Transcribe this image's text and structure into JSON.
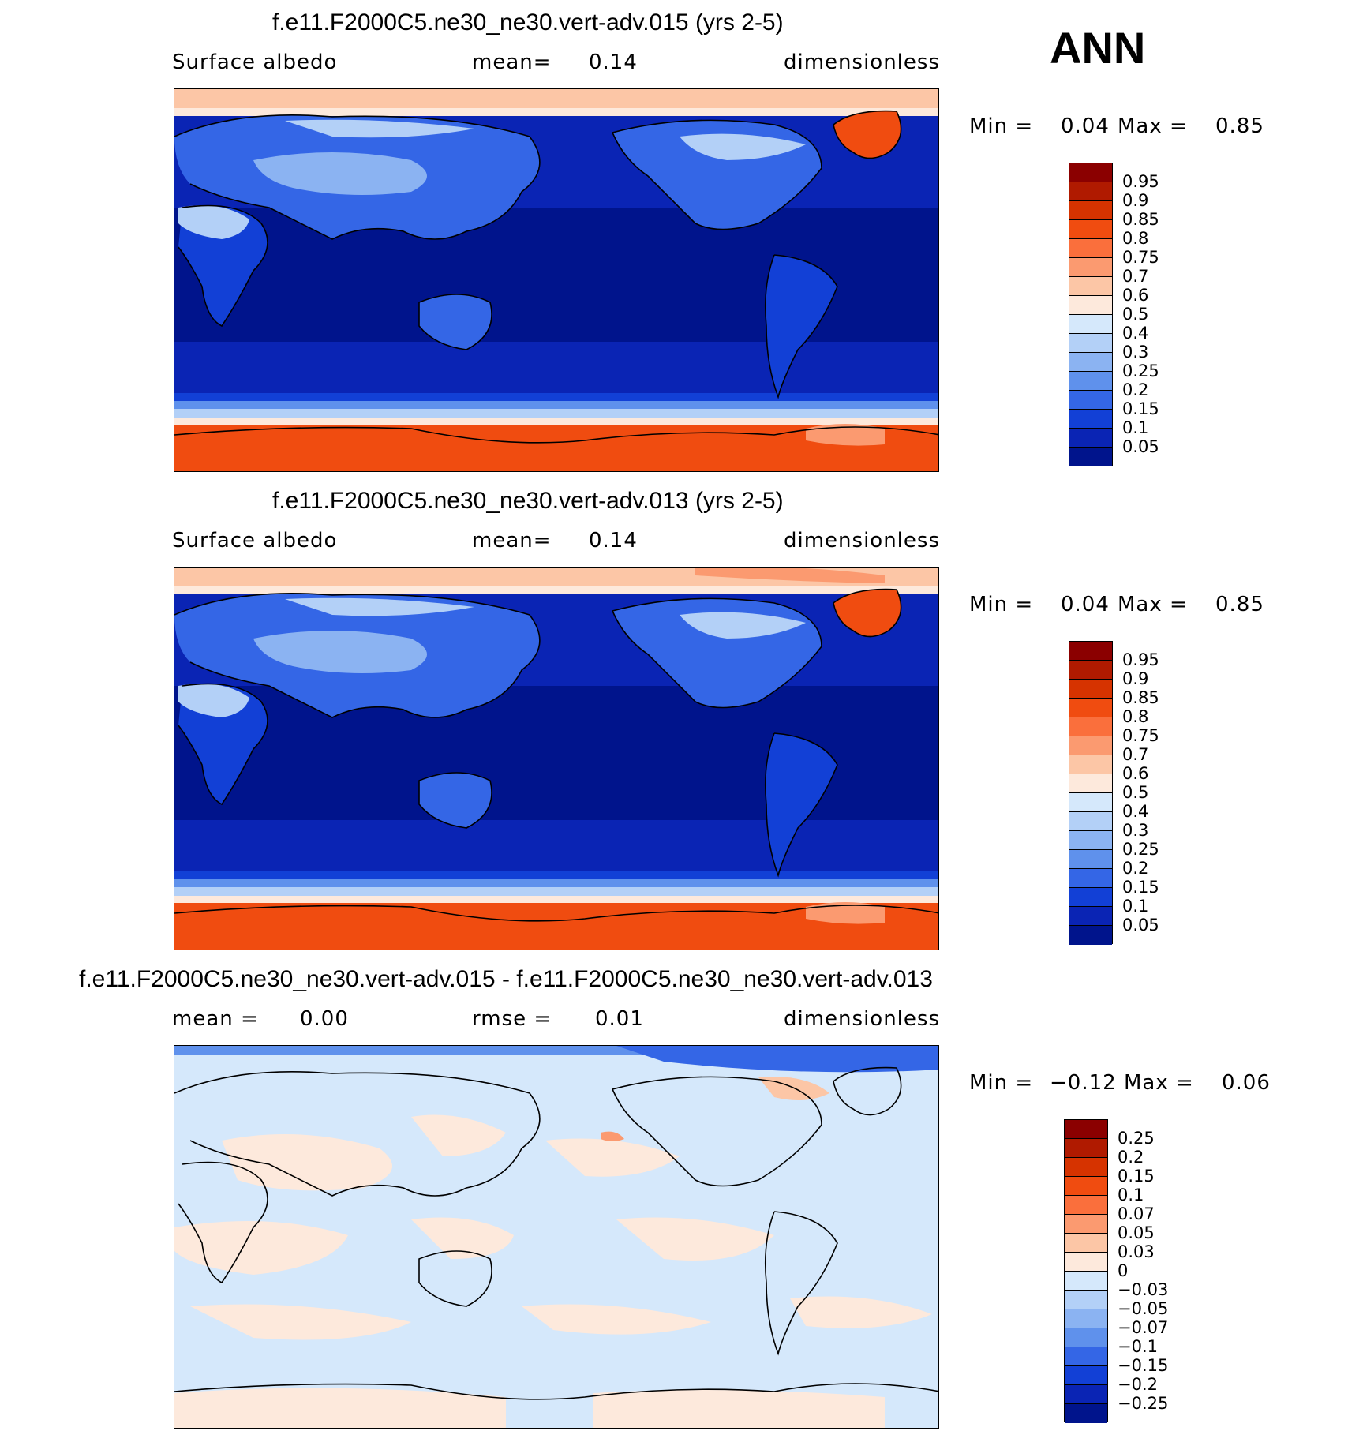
{
  "season": "ANN",
  "panels": [
    {
      "title": "f.e11.F2000C5.ne30_ne30.vert-adv.015 (yrs 2-5)",
      "left_label": "Surface albedo",
      "mid_label": "mean=",
      "mid_value": "0.14",
      "right_label": "dimensionless",
      "min_label": "Min =",
      "min_value": "0.04",
      "max_label": "Max =",
      "max_value": "0.85",
      "colorbar": {
        "labels": [
          "0.95",
          "0.9",
          "0.85",
          "0.8",
          "0.75",
          "0.7",
          "0.6",
          "0.5",
          "0.4",
          "0.3",
          "0.25",
          "0.2",
          "0.15",
          "0.1",
          "0.05"
        ],
        "colors": [
          "#8b0000",
          "#b01a00",
          "#d63300",
          "#f04c10",
          "#fa6f3c",
          "#fb9a70",
          "#fcc6a6",
          "#fde9dc",
          "#d5e8fb",
          "#b3d0f7",
          "#8bb3f2",
          "#5f91ec",
          "#3466e6",
          "#1240d6",
          "#0a24b4",
          "#00148c"
        ]
      }
    },
    {
      "title": "f.e11.F2000C5.ne30_ne30.vert-adv.013 (yrs 2-5)",
      "left_label": "Surface albedo",
      "mid_label": "mean=",
      "mid_value": "0.14",
      "right_label": "dimensionless",
      "min_label": "Min =",
      "min_value": "0.04",
      "max_label": "Max =",
      "max_value": "0.85",
      "colorbar": {
        "labels": [
          "0.95",
          "0.9",
          "0.85",
          "0.8",
          "0.75",
          "0.7",
          "0.6",
          "0.5",
          "0.4",
          "0.3",
          "0.25",
          "0.2",
          "0.15",
          "0.1",
          "0.05"
        ],
        "colors": [
          "#8b0000",
          "#b01a00",
          "#d63300",
          "#f04c10",
          "#fa6f3c",
          "#fb9a70",
          "#fcc6a6",
          "#fde9dc",
          "#d5e8fb",
          "#b3d0f7",
          "#8bb3f2",
          "#5f91ec",
          "#3466e6",
          "#1240d6",
          "#0a24b4",
          "#00148c"
        ]
      }
    },
    {
      "title": "f.e11.F2000C5.ne30_ne30.vert-adv.015 - f.e11.F2000C5.ne30_ne30.vert-adv.013",
      "left_label": "mean =",
      "left_value": "0.00",
      "mid_label": "rmse =",
      "mid_value": "0.01",
      "right_label": "dimensionless",
      "min_label": "Min =",
      "min_value": "−0.12",
      "max_label": "Max =",
      "max_value": "0.06",
      "colorbar": {
        "labels": [
          "0.25",
          "0.2",
          "0.15",
          "0.1",
          "0.07",
          "0.05",
          "0.03",
          "0",
          "−0.03",
          "−0.05",
          "−0.07",
          "−0.1",
          "−0.15",
          "−0.2",
          "−0.25"
        ],
        "colors": [
          "#8b0000",
          "#b01a00",
          "#d63300",
          "#f04c10",
          "#fa6f3c",
          "#fb9a70",
          "#fcc6a6",
          "#fde9dc",
          "#d5e8fb",
          "#b3d0f7",
          "#8bb3f2",
          "#5f91ec",
          "#3466e6",
          "#1240d6",
          "#0a24b4",
          "#00148c"
        ]
      }
    }
  ]
}
